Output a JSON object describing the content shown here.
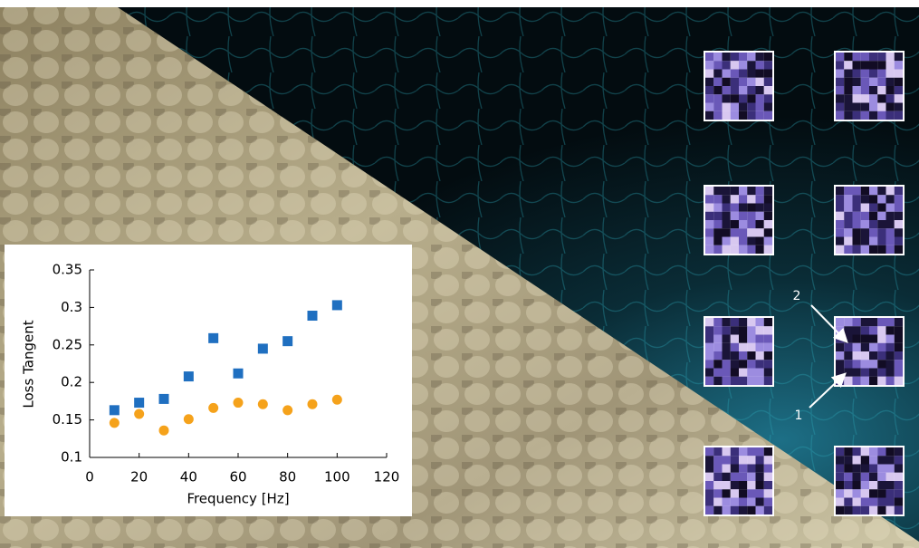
{
  "chart_data": {
    "type": "scatter",
    "x_label": "Frequency [Hz]",
    "y_label": "Loss Tangent",
    "x": [
      10,
      20,
      30,
      40,
      50,
      60,
      70,
      80,
      90,
      100
    ],
    "series": [
      {
        "color": "#1f6fc0",
        "marker": "square",
        "values": [
          0.163,
          0.173,
          0.178,
          0.208,
          0.259,
          0.212,
          0.245,
          0.255,
          0.289,
          0.303
        ]
      },
      {
        "color": "#f5a21b",
        "marker": "circle",
        "values": [
          0.146,
          0.158,
          0.136,
          0.151,
          0.166,
          0.173,
          0.171,
          0.163,
          0.171,
          0.177
        ]
      }
    ],
    "xlim": [
      0,
      120
    ],
    "xticks": [
      0,
      20,
      40,
      60,
      80,
      100,
      120
    ],
    "ylim": [
      0.1,
      0.35
    ],
    "yticks": [
      0.1,
      0.15,
      0.2,
      0.25,
      0.3,
      0.35
    ]
  },
  "labels": [
    "2",
    "1"
  ]
}
